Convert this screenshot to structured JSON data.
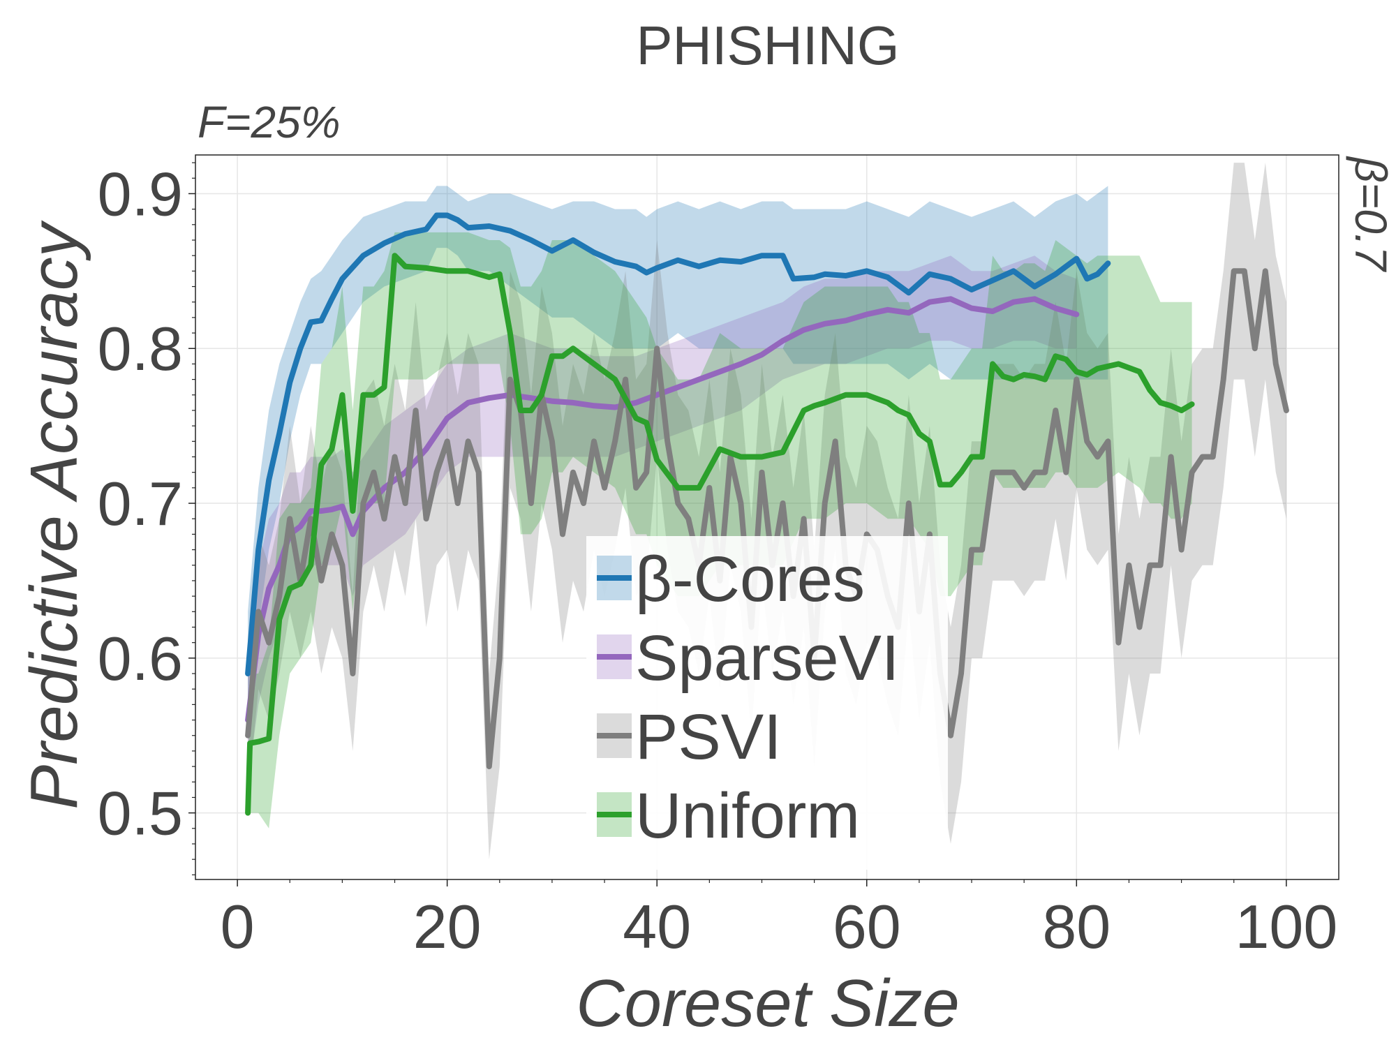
{
  "chart_data": {
    "type": "line",
    "title": "PHISHING",
    "corner_left": "F=25%",
    "corner_right": "β=0.7",
    "xlabel": "Coreset Size",
    "ylabel": "Predictive Accuracy",
    "xlim": [
      -4,
      105
    ],
    "ylim": [
      0.457,
      0.925
    ],
    "xticks": [
      0,
      20,
      40,
      60,
      80,
      100
    ],
    "yticks": [
      0.5,
      0.6,
      0.7,
      0.8,
      0.9
    ],
    "ytick_labels": [
      "0.5",
      "0.6",
      "0.7",
      "0.8",
      "0.9"
    ],
    "grid": true,
    "legend": "center",
    "series": [
      {
        "name": "β-Cores",
        "color": "#1f77b4",
        "x": [
          1,
          2,
          3,
          4,
          5,
          6,
          7,
          8,
          9,
          10,
          12,
          14,
          16,
          18,
          19,
          20,
          21,
          22,
          24,
          26,
          28,
          30,
          32,
          34,
          36,
          38,
          39,
          40,
          42,
          44,
          46,
          48,
          50,
          52,
          53,
          55,
          56,
          58,
          60,
          62,
          64,
          66,
          68,
          70,
          72,
          74,
          76,
          78,
          80,
          81,
          82,
          83
        ],
        "y": [
          0.59,
          0.67,
          0.715,
          0.745,
          0.778,
          0.8,
          0.817,
          0.818,
          0.832,
          0.845,
          0.86,
          0.868,
          0.874,
          0.877,
          0.886,
          0.886,
          0.883,
          0.878,
          0.879,
          0.876,
          0.87,
          0.863,
          0.87,
          0.862,
          0.856,
          0.853,
          0.849,
          0.852,
          0.857,
          0.853,
          0.857,
          0.856,
          0.86,
          0.86,
          0.845,
          0.846,
          0.848,
          0.847,
          0.85,
          0.846,
          0.836,
          0.848,
          0.845,
          0.838,
          0.844,
          0.85,
          0.84,
          0.848,
          0.858,
          0.845,
          0.848,
          0.855
        ],
        "lower": [
          0.55,
          0.62,
          0.67,
          0.7,
          0.74,
          0.77,
          0.79,
          0.79,
          0.8,
          0.81,
          0.83,
          0.84,
          0.845,
          0.85,
          0.865,
          0.865,
          0.86,
          0.85,
          0.85,
          0.84,
          0.83,
          0.82,
          0.82,
          0.81,
          0.8,
          0.8,
          0.8,
          0.8,
          0.81,
          0.8,
          0.8,
          0.8,
          0.8,
          0.8,
          0.79,
          0.79,
          0.79,
          0.79,
          0.79,
          0.79,
          0.78,
          0.79,
          0.78,
          0.78,
          0.78,
          0.78,
          0.78,
          0.78,
          0.78,
          0.78,
          0.78,
          0.78
        ],
        "upper": [
          0.63,
          0.71,
          0.76,
          0.79,
          0.81,
          0.83,
          0.845,
          0.85,
          0.86,
          0.87,
          0.885,
          0.89,
          0.895,
          0.895,
          0.905,
          0.905,
          0.9,
          0.895,
          0.9,
          0.9,
          0.895,
          0.89,
          0.895,
          0.895,
          0.89,
          0.89,
          0.885,
          0.89,
          0.895,
          0.89,
          0.895,
          0.89,
          0.895,
          0.895,
          0.89,
          0.89,
          0.89,
          0.89,
          0.895,
          0.89,
          0.885,
          0.895,
          0.89,
          0.885,
          0.89,
          0.895,
          0.885,
          0.895,
          0.9,
          0.895,
          0.9,
          0.905
        ]
      },
      {
        "name": "SparseVI",
        "color": "#9467bd",
        "x": [
          1,
          2,
          3,
          4,
          5,
          6,
          7,
          8,
          9,
          10,
          11,
          12,
          14,
          16,
          18,
          20,
          22,
          24,
          26,
          28,
          30,
          32,
          34,
          36,
          38,
          40,
          42,
          44,
          46,
          48,
          50,
          52,
          54,
          56,
          58,
          60,
          62,
          64,
          66,
          68,
          70,
          72,
          74,
          76,
          78,
          80
        ],
        "y": [
          0.56,
          0.615,
          0.645,
          0.66,
          0.68,
          0.685,
          0.695,
          0.695,
          0.696,
          0.698,
          0.68,
          0.695,
          0.71,
          0.72,
          0.735,
          0.755,
          0.765,
          0.768,
          0.77,
          0.768,
          0.766,
          0.765,
          0.763,
          0.762,
          0.765,
          0.77,
          0.775,
          0.78,
          0.785,
          0.79,
          0.796,
          0.805,
          0.812,
          0.816,
          0.818,
          0.822,
          0.825,
          0.823,
          0.83,
          0.832,
          0.826,
          0.824,
          0.83,
          0.832,
          0.826,
          0.822
        ],
        "lower": [
          0.52,
          0.57,
          0.6,
          0.62,
          0.64,
          0.65,
          0.66,
          0.66,
          0.66,
          0.66,
          0.64,
          0.66,
          0.67,
          0.68,
          0.7,
          0.72,
          0.73,
          0.73,
          0.73,
          0.73,
          0.73,
          0.73,
          0.73,
          0.73,
          0.735,
          0.74,
          0.745,
          0.75,
          0.755,
          0.76,
          0.77,
          0.78,
          0.785,
          0.79,
          0.79,
          0.795,
          0.8,
          0.8,
          0.805,
          0.805,
          0.8,
          0.8,
          0.805,
          0.805,
          0.8,
          0.8
        ],
        "upper": [
          0.6,
          0.66,
          0.69,
          0.7,
          0.72,
          0.72,
          0.73,
          0.73,
          0.73,
          0.735,
          0.72,
          0.73,
          0.75,
          0.76,
          0.77,
          0.79,
          0.8,
          0.805,
          0.81,
          0.805,
          0.8,
          0.8,
          0.795,
          0.795,
          0.795,
          0.8,
          0.805,
          0.81,
          0.815,
          0.82,
          0.825,
          0.83,
          0.84,
          0.845,
          0.845,
          0.85,
          0.85,
          0.85,
          0.855,
          0.86,
          0.85,
          0.85,
          0.855,
          0.86,
          0.85,
          0.845
        ]
      },
      {
        "name": "PSVI",
        "color": "#7f7f7f",
        "x": [
          1,
          2,
          3,
          4,
          5,
          6,
          7,
          8,
          9,
          10,
          11,
          12,
          13,
          14,
          15,
          16,
          17,
          18,
          19,
          20,
          21,
          22,
          23,
          24,
          25,
          26,
          27,
          28,
          29,
          30,
          31,
          32,
          33,
          34,
          35,
          36,
          37,
          38,
          39,
          40,
          41,
          42,
          43,
          44,
          45,
          46,
          47,
          48,
          49,
          50,
          51,
          52,
          53,
          54,
          55,
          56,
          57,
          58,
          59,
          60,
          61,
          62,
          63,
          64,
          65,
          66,
          67,
          68,
          69,
          70,
          71,
          72,
          73,
          74,
          75,
          76,
          77,
          78,
          79,
          80,
          81,
          82,
          83,
          84,
          85,
          86,
          87,
          88,
          89,
          90,
          91,
          92,
          93,
          94,
          95,
          96,
          97,
          98,
          99,
          100
        ],
        "y": [
          0.55,
          0.63,
          0.61,
          0.64,
          0.69,
          0.65,
          0.69,
          0.65,
          0.68,
          0.66,
          0.59,
          0.7,
          0.72,
          0.69,
          0.73,
          0.7,
          0.76,
          0.69,
          0.72,
          0.74,
          0.7,
          0.74,
          0.72,
          0.53,
          0.6,
          0.78,
          0.76,
          0.7,
          0.77,
          0.74,
          0.68,
          0.72,
          0.7,
          0.74,
          0.71,
          0.74,
          0.78,
          0.71,
          0.72,
          0.8,
          0.74,
          0.7,
          0.69,
          0.66,
          0.71,
          0.65,
          0.73,
          0.7,
          0.62,
          0.72,
          0.66,
          0.7,
          0.64,
          0.69,
          0.6,
          0.7,
          0.74,
          0.66,
          0.64,
          0.68,
          0.67,
          0.64,
          0.62,
          0.7,
          0.63,
          0.68,
          0.59,
          0.55,
          0.59,
          0.67,
          0.67,
          0.72,
          0.72,
          0.72,
          0.71,
          0.72,
          0.72,
          0.76,
          0.72,
          0.78,
          0.74,
          0.73,
          0.74,
          0.61,
          0.66,
          0.62,
          0.66,
          0.66,
          0.73,
          0.67,
          0.72,
          0.73,
          0.73,
          0.78,
          0.85,
          0.85,
          0.8,
          0.85,
          0.79,
          0.76
        ],
        "lower": [
          0.51,
          0.58,
          0.56,
          0.59,
          0.63,
          0.6,
          0.63,
          0.59,
          0.62,
          0.6,
          0.54,
          0.63,
          0.66,
          0.63,
          0.67,
          0.64,
          0.69,
          0.62,
          0.66,
          0.67,
          0.63,
          0.67,
          0.65,
          0.47,
          0.53,
          0.71,
          0.69,
          0.63,
          0.7,
          0.67,
          0.61,
          0.65,
          0.63,
          0.67,
          0.64,
          0.67,
          0.71,
          0.64,
          0.65,
          0.73,
          0.67,
          0.63,
          0.62,
          0.59,
          0.64,
          0.58,
          0.66,
          0.63,
          0.55,
          0.65,
          0.59,
          0.63,
          0.57,
          0.62,
          0.53,
          0.63,
          0.67,
          0.59,
          0.57,
          0.61,
          0.6,
          0.57,
          0.55,
          0.63,
          0.56,
          0.61,
          0.52,
          0.48,
          0.52,
          0.6,
          0.6,
          0.65,
          0.65,
          0.65,
          0.64,
          0.65,
          0.65,
          0.69,
          0.65,
          0.71,
          0.67,
          0.66,
          0.67,
          0.54,
          0.59,
          0.55,
          0.59,
          0.59,
          0.66,
          0.6,
          0.65,
          0.66,
          0.66,
          0.71,
          0.78,
          0.78,
          0.73,
          0.78,
          0.72,
          0.69
        ],
        "upper": [
          0.59,
          0.68,
          0.66,
          0.69,
          0.75,
          0.7,
          0.75,
          0.71,
          0.74,
          0.72,
          0.64,
          0.77,
          0.78,
          0.75,
          0.79,
          0.76,
          0.83,
          0.76,
          0.78,
          0.81,
          0.77,
          0.81,
          0.79,
          0.59,
          0.67,
          0.85,
          0.83,
          0.77,
          0.84,
          0.81,
          0.75,
          0.79,
          0.77,
          0.81,
          0.78,
          0.81,
          0.85,
          0.78,
          0.79,
          0.87,
          0.81,
          0.77,
          0.76,
          0.73,
          0.78,
          0.72,
          0.8,
          0.77,
          0.69,
          0.79,
          0.73,
          0.77,
          0.71,
          0.76,
          0.67,
          0.77,
          0.81,
          0.73,
          0.71,
          0.75,
          0.74,
          0.71,
          0.69,
          0.77,
          0.7,
          0.75,
          0.66,
          0.62,
          0.66,
          0.74,
          0.74,
          0.79,
          0.79,
          0.79,
          0.78,
          0.79,
          0.79,
          0.83,
          0.79,
          0.85,
          0.81,
          0.8,
          0.81,
          0.68,
          0.73,
          0.69,
          0.73,
          0.73,
          0.8,
          0.74,
          0.79,
          0.8,
          0.8,
          0.85,
          0.92,
          0.92,
          0.87,
          0.92,
          0.86,
          0.83
        ]
      },
      {
        "name": "Uniform",
        "color": "#2ca02c",
        "x": [
          1,
          1.2,
          2,
          3,
          4,
          5,
          6,
          7,
          8,
          9,
          10,
          11,
          12,
          13,
          14,
          15,
          16,
          18,
          20,
          22,
          24,
          25,
          26,
          27,
          28,
          29,
          30,
          31,
          32,
          34,
          36,
          38,
          39,
          40,
          42,
          44,
          46,
          48,
          50,
          52,
          54,
          55,
          56,
          58,
          60,
          62,
          63,
          64,
          65,
          66,
          67,
          68,
          69,
          70,
          71,
          72,
          73,
          74,
          75,
          76,
          77,
          78,
          79,
          80,
          81,
          82,
          84,
          86,
          87,
          88,
          89,
          90,
          91
        ],
        "y": [
          0.5,
          0.545,
          0.546,
          0.548,
          0.625,
          0.645,
          0.648,
          0.66,
          0.725,
          0.735,
          0.77,
          0.695,
          0.77,
          0.77,
          0.775,
          0.86,
          0.853,
          0.852,
          0.85,
          0.85,
          0.846,
          0.848,
          0.81,
          0.76,
          0.76,
          0.77,
          0.795,
          0.795,
          0.8,
          0.79,
          0.78,
          0.755,
          0.752,
          0.728,
          0.71,
          0.71,
          0.735,
          0.73,
          0.73,
          0.733,
          0.76,
          0.763,
          0.765,
          0.77,
          0.77,
          0.765,
          0.76,
          0.757,
          0.745,
          0.74,
          0.712,
          0.712,
          0.72,
          0.73,
          0.73,
          0.79,
          0.782,
          0.78,
          0.783,
          0.782,
          0.78,
          0.795,
          0.793,
          0.785,
          0.783,
          0.787,
          0.79,
          0.785,
          0.773,
          0.765,
          0.763,
          0.76,
          0.764
        ],
        "lower": [
          0.5,
          0.5,
          0.5,
          0.49,
          0.55,
          0.59,
          0.6,
          0.61,
          0.66,
          0.67,
          0.7,
          0.63,
          0.7,
          0.7,
          0.7,
          0.78,
          0.78,
          0.78,
          0.79,
          0.79,
          0.79,
          0.79,
          0.75,
          0.68,
          0.68,
          0.69,
          0.72,
          0.72,
          0.73,
          0.72,
          0.71,
          0.68,
          0.68,
          0.66,
          0.64,
          0.64,
          0.66,
          0.66,
          0.66,
          0.66,
          0.69,
          0.69,
          0.69,
          0.7,
          0.7,
          0.69,
          0.69,
          0.69,
          0.68,
          0.67,
          0.64,
          0.64,
          0.65,
          0.66,
          0.66,
          0.72,
          0.71,
          0.71,
          0.71,
          0.71,
          0.71,
          0.72,
          0.72,
          0.71,
          0.71,
          0.71,
          0.72,
          0.71,
          0.7,
          0.7,
          0.69,
          0.69,
          0.7
        ],
        "upper": [
          0.5,
          0.59,
          0.59,
          0.61,
          0.69,
          0.7,
          0.7,
          0.71,
          0.79,
          0.8,
          0.84,
          0.76,
          0.84,
          0.84,
          0.85,
          0.875,
          0.875,
          0.875,
          0.875,
          0.875,
          0.87,
          0.87,
          0.865,
          0.84,
          0.84,
          0.85,
          0.87,
          0.87,
          0.87,
          0.86,
          0.85,
          0.83,
          0.82,
          0.8,
          0.78,
          0.78,
          0.81,
          0.8,
          0.8,
          0.8,
          0.83,
          0.835,
          0.84,
          0.84,
          0.84,
          0.84,
          0.83,
          0.83,
          0.81,
          0.81,
          0.78,
          0.78,
          0.79,
          0.8,
          0.8,
          0.86,
          0.85,
          0.85,
          0.855,
          0.855,
          0.85,
          0.87,
          0.865,
          0.86,
          0.855,
          0.86,
          0.86,
          0.86,
          0.845,
          0.83,
          0.83,
          0.83,
          0.83
        ]
      }
    ]
  }
}
